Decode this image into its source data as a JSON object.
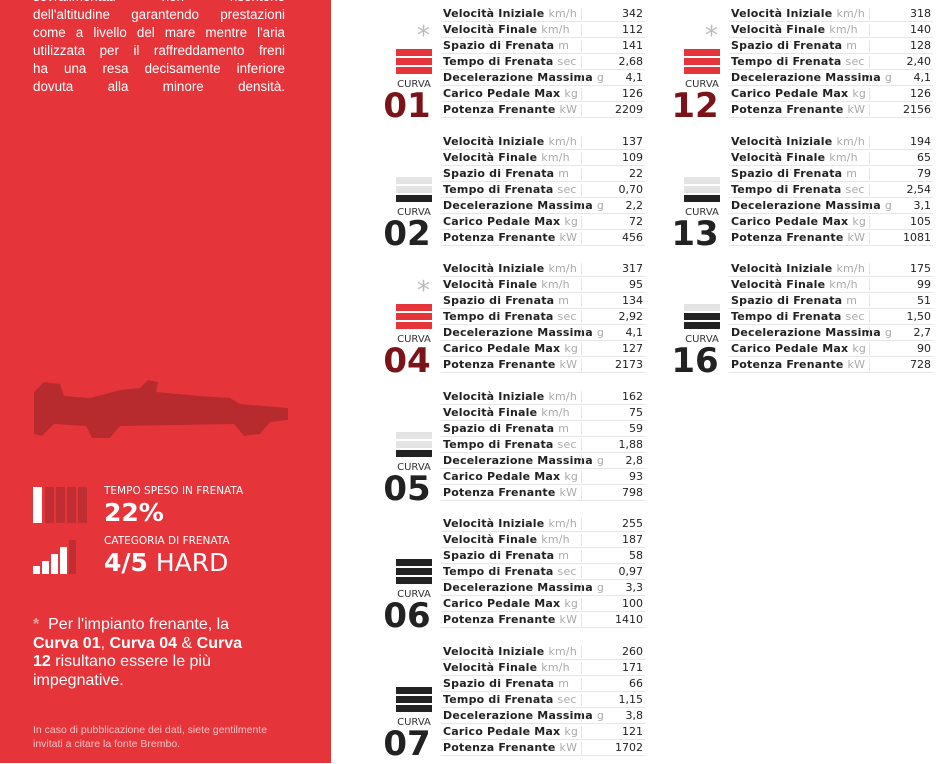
{
  "intro": [
    "sovralimentati non risentono",
    "dell'altitudine garantendo prestazioni",
    "come a livello del mare mentre l'aria",
    "utilizzata per il raffreddamento freni",
    "ha una resa decisamente inferiore",
    "dovuta alla minore densità."
  ],
  "stats": [
    {
      "label": "TEMPO SPESO IN FRENATA",
      "value": "22%"
    },
    {
      "label": "CATEGORIA DI FRENATA",
      "value": "4/5",
      "suffix": "HARD"
    }
  ],
  "note": {
    "star": "*",
    "parts": [
      "Per l'impianto frenante, la ",
      "Curva 01",
      ", ",
      "Curva 04",
      " & ",
      "Curva 12",
      " risultano essere le più impegnative."
    ]
  },
  "source": "In caso di pubblicazione dei dati, siete gentilmente invitati a citare la fonte Brembo.",
  "curve_label": "CURVA",
  "star": "*",
  "metrics": [
    {
      "label": "Velocità Iniziale",
      "unit": "km/h"
    },
    {
      "label": "Velocità Finale",
      "unit": "km/h"
    },
    {
      "label": "Spazio di Frenata",
      "unit": "m"
    },
    {
      "label": "Tempo di Frenata",
      "unit": "sec"
    },
    {
      "label": "Decelerazione Massima",
      "unit": "g"
    },
    {
      "label": "Carico Pedale Max",
      "unit": "kg"
    },
    {
      "label": "Potenza Frenante",
      "unit": "kW"
    }
  ],
  "curves": [
    {
      "number": "01",
      "starred": true,
      "level": 3,
      "values": [
        "342",
        "112",
        "141",
        "2,68",
        "4,1",
        "126",
        "2209"
      ]
    },
    {
      "number": "02",
      "starred": false,
      "level": 1,
      "values": [
        "137",
        "109",
        "22",
        "0,70",
        "2,2",
        "72",
        "456"
      ]
    },
    {
      "number": "04",
      "starred": true,
      "level": 3,
      "values": [
        "317",
        "95",
        "134",
        "2,92",
        "4,1",
        "127",
        "2173"
      ]
    },
    {
      "number": "05",
      "starred": false,
      "level": 1,
      "values": [
        "162",
        "75",
        "59",
        "1,88",
        "2,8",
        "93",
        "798"
      ]
    },
    {
      "number": "06",
      "starred": false,
      "level": 3,
      "values": [
        "255",
        "187",
        "58",
        "0,97",
        "3,3",
        "100",
        "1410"
      ]
    },
    {
      "number": "07",
      "starred": false,
      "level": 3,
      "values": [
        "260",
        "171",
        "66",
        "1,15",
        "3,8",
        "121",
        "1702"
      ]
    },
    {
      "number": "12",
      "starred": true,
      "level": 3,
      "values": [
        "318",
        "140",
        "128",
        "2,40",
        "4,1",
        "126",
        "2156"
      ]
    },
    {
      "number": "13",
      "starred": false,
      "level": 1,
      "values": [
        "194",
        "65",
        "79",
        "2,54",
        "3,1",
        "105",
        "1081"
      ]
    },
    {
      "number": "16",
      "starred": false,
      "level": 2,
      "values": [
        "175",
        "99",
        "51",
        "1,50",
        "2,7",
        "90",
        "728"
      ]
    }
  ]
}
